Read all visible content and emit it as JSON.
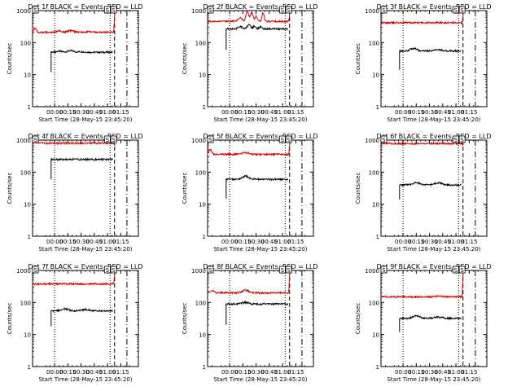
{
  "figure": {
    "x_axis_label": "Start Time (28-May-15 23:45:20)",
    "y_axis_label": "Counts/sec",
    "x_tick_labels": [
      "00:00",
      "00:15",
      "00:30",
      "00:45",
      "01:00",
      "01:15"
    ],
    "y_tick_labels": [
      "1",
      "10",
      "100",
      "1000"
    ],
    "corner_markers": [
      "S",
      "S",
      "S"
    ]
  },
  "chart_data": [
    {
      "type": "line",
      "title": "Det 1f BLACK = Events, RED = LLD",
      "ylabel": "Counts/sec",
      "xlabel": "Start Time (28-May-15 23:45:20)",
      "log_y": true,
      "ylim": [
        1,
        1000
      ],
      "xlim_minutes": [
        -25,
        95
      ],
      "series": [
        {
          "name": "BLACK = Events",
          "color": "#000000",
          "start": -4,
          "end": 66,
          "level": 50,
          "onset": 12,
          "features": [
            [
              5,
              8,
              1.08
            ],
            [
              18,
              10,
              1.12
            ],
            [
              30,
              8,
              1.05
            ]
          ]
        },
        {
          "name": "RED = LLD",
          "color": "#d00000",
          "start": -25,
          "end": 67,
          "level": 210,
          "onset": 300,
          "features": [
            [
              -22,
              4,
              1.4
            ],
            [
              5,
              8,
              1.1
            ],
            [
              18,
              10,
              1.12
            ],
            [
              40,
              10,
              1.05
            ]
          ],
          "final_rise": 1000
        }
      ],
      "markers": {
        "dotted": [
          0,
          63
        ],
        "dashed": [
          68
        ],
        "dashdot": [
          82
        ]
      }
    },
    {
      "type": "line",
      "title": "Det 2f BLACK = Events, RED = LLD",
      "ylabel": "Counts/sec",
      "xlabel": "Start Time (28-May-15 23:45:20)",
      "log_y": true,
      "ylim": [
        1,
        1000
      ],
      "xlim_minutes": [
        -25,
        95
      ],
      "series": [
        {
          "name": "BLACK = Events",
          "color": "#000000",
          "start": -4,
          "end": 66,
          "level": 270,
          "onset": 60,
          "features": [
            [
              12,
              6,
              1.15
            ],
            [
              22,
              5,
              1.35
            ],
            [
              28,
              4,
              1.2
            ],
            [
              35,
              4,
              1.15
            ]
          ]
        },
        {
          "name": "RED = LLD",
          "color": "#d00000",
          "start": -25,
          "end": 67,
          "level": 460,
          "onset": 460,
          "features": [
            [
              12,
              6,
              1.3
            ],
            [
              20,
              4,
              2.0
            ],
            [
              25,
              4,
              1.8
            ],
            [
              30,
              3,
              1.5
            ],
            [
              38,
              3,
              1.9
            ]
          ],
          "final_rise": 1000
        }
      ],
      "markers": {
        "dotted": [
          0,
          63
        ],
        "dashed": [
          68
        ],
        "dashdot": [
          82
        ]
      }
    },
    {
      "type": "line",
      "title": "Det 3f BLACK = Events, RED = LLD",
      "ylabel": "Counts/sec",
      "xlabel": "Start Time (28-May-15 23:45:20)",
      "log_y": true,
      "ylim": [
        1,
        1000
      ],
      "xlim_minutes": [
        -25,
        95
      ],
      "series": [
        {
          "name": "BLACK = Events",
          "color": "#000000",
          "start": -4,
          "end": 66,
          "level": 55,
          "onset": 14,
          "features": [
            [
              12,
              10,
              1.2
            ],
            [
              40,
              12,
              1.1
            ]
          ]
        },
        {
          "name": "RED = LLD",
          "color": "#d00000",
          "start": -25,
          "end": 67,
          "level": 420,
          "onset": 420,
          "features": [],
          "final_rise": 1000
        }
      ],
      "markers": {
        "dotted": [
          0,
          63
        ],
        "dashed": [
          68
        ],
        "dashdot": [
          82
        ]
      }
    },
    {
      "type": "line",
      "title": "Det 4f BLACK = Events, RED = LLD",
      "ylabel": "Counts/sec",
      "xlabel": "Start Time (28-May-15 23:45:20)",
      "log_y": true,
      "ylim": [
        1,
        1000
      ],
      "xlim_minutes": [
        -25,
        95
      ],
      "series": [
        {
          "name": "BLACK = Events",
          "color": "#000000",
          "start": -4,
          "end": 66,
          "level": 250,
          "onset": 60,
          "features": []
        },
        {
          "name": "RED = LLD",
          "color": "#d00000",
          "start": -25,
          "end": 67,
          "level": 800,
          "onset": 800,
          "features": [
            [
              -20,
              10,
              1.05
            ]
          ],
          "final_rise": 1000
        }
      ],
      "markers": {
        "dotted": [
          0,
          63
        ],
        "dashed": [
          68
        ],
        "dashdot": [
          82
        ]
      }
    },
    {
      "type": "line",
      "title": "Det 5f BLACK = Events, RED = LLD",
      "ylabel": "Counts/sec",
      "xlabel": "Start Time (28-May-15 23:45:20)",
      "log_y": true,
      "ylim": [
        1,
        1000
      ],
      "xlim_minutes": [
        -25,
        95
      ],
      "series": [
        {
          "name": "BLACK = Events",
          "color": "#000000",
          "start": -4,
          "end": 66,
          "level": 60,
          "onset": 15,
          "features": [
            [
              18,
              10,
              1.25
            ]
          ]
        },
        {
          "name": "RED = LLD",
          "color": "#d00000",
          "start": -25,
          "end": 67,
          "level": 360,
          "onset": 360,
          "features": [
            [
              -22,
              5,
              1.4
            ],
            [
              18,
              10,
              1.15
            ]
          ],
          "final_rise": 1000
        }
      ],
      "markers": {
        "dotted": [
          0,
          63
        ],
        "dashed": [
          68
        ],
        "dashdot": [
          82
        ]
      }
    },
    {
      "type": "line",
      "title": "Det 6f BLACK = Events, RED = LLD",
      "ylabel": "Counts/sec",
      "xlabel": "Start Time (28-May-15 23:45:20)",
      "log_y": true,
      "ylim": [
        1,
        1000
      ],
      "xlim_minutes": [
        -25,
        95
      ],
      "series": [
        {
          "name": "BLACK = Events",
          "color": "#000000",
          "start": -4,
          "end": 66,
          "level": 40,
          "onset": 14,
          "features": [
            [
              15,
              10,
              1.2
            ],
            [
              40,
              12,
              1.15
            ]
          ]
        },
        {
          "name": "RED = LLD",
          "color": "#d00000",
          "start": -25,
          "end": 67,
          "level": 780,
          "onset": 780,
          "features": [],
          "final_rise": 1000
        }
      ],
      "markers": {
        "dotted": [
          0,
          63
        ],
        "dashed": [
          68
        ],
        "dashdot": [
          82
        ]
      }
    },
    {
      "type": "line",
      "title": "Det 7f BLACK = Events, RED = LLD",
      "ylabel": "Counts/sec",
      "xlabel": "Start Time (28-May-15 23:45:20)",
      "log_y": true,
      "ylim": [
        1,
        1000
      ],
      "xlim_minutes": [
        -25,
        95
      ],
      "series": [
        {
          "name": "BLACK = Events",
          "color": "#000000",
          "start": -4,
          "end": 66,
          "level": 55,
          "onset": 18,
          "features": [
            [
              12,
              10,
              1.15
            ],
            [
              35,
              10,
              1.1
            ]
          ]
        },
        {
          "name": "RED = LLD",
          "color": "#d00000",
          "start": -25,
          "end": 67,
          "level": 380,
          "onset": 380,
          "features": [],
          "final_rise": 1000
        }
      ],
      "markers": {
        "dotted": [
          0,
          63
        ],
        "dashed": [
          68
        ],
        "dashdot": [
          82
        ]
      }
    },
    {
      "type": "line",
      "title": "Det 8f BLACK = Events, RED = LLD",
      "ylabel": "Counts/sec",
      "xlabel": "Start Time (28-May-15 23:45:20)",
      "log_y": true,
      "ylim": [
        1,
        1000
      ],
      "xlim_minutes": [
        -25,
        95
      ],
      "series": [
        {
          "name": "BLACK = Events",
          "color": "#000000",
          "start": -4,
          "end": 66,
          "level": 90,
          "onset": 20,
          "features": [
            [
              18,
              10,
              1.12
            ]
          ]
        },
        {
          "name": "RED = LLD",
          "color": "#d00000",
          "start": -25,
          "end": 67,
          "level": 200,
          "onset": 200,
          "features": [
            [
              -20,
              6,
              1.2
            ],
            [
              18,
              10,
              1.2
            ]
          ],
          "final_rise": 1000
        }
      ],
      "markers": {
        "dotted": [
          0,
          63
        ],
        "dashed": [
          68
        ],
        "dashdot": [
          82
        ]
      }
    },
    {
      "type": "line",
      "title": "Det 9f BLACK = Events, RED = LLD",
      "ylabel": "Counts/sec",
      "xlabel": "Start Time (28-May-15 23:45:20)",
      "log_y": true,
      "ylim": [
        1,
        1000
      ],
      "xlim_minutes": [
        -25,
        95
      ],
      "series": [
        {
          "name": "BLACK = Events",
          "color": "#000000",
          "start": -4,
          "end": 66,
          "level": 32,
          "onset": 12,
          "features": [
            [
              15,
              10,
              1.2
            ],
            [
              40,
              12,
              1.1
            ]
          ]
        },
        {
          "name": "RED = LLD",
          "color": "#d00000",
          "start": -25,
          "end": 67,
          "level": 150,
          "onset": 150,
          "features": [
            [
              40,
              12,
              1.05
            ]
          ],
          "final_rise": 1000
        }
      ],
      "markers": {
        "dotted": [
          0,
          63
        ],
        "dashed": [
          68
        ],
        "dashdot": [
          82
        ]
      }
    }
  ]
}
